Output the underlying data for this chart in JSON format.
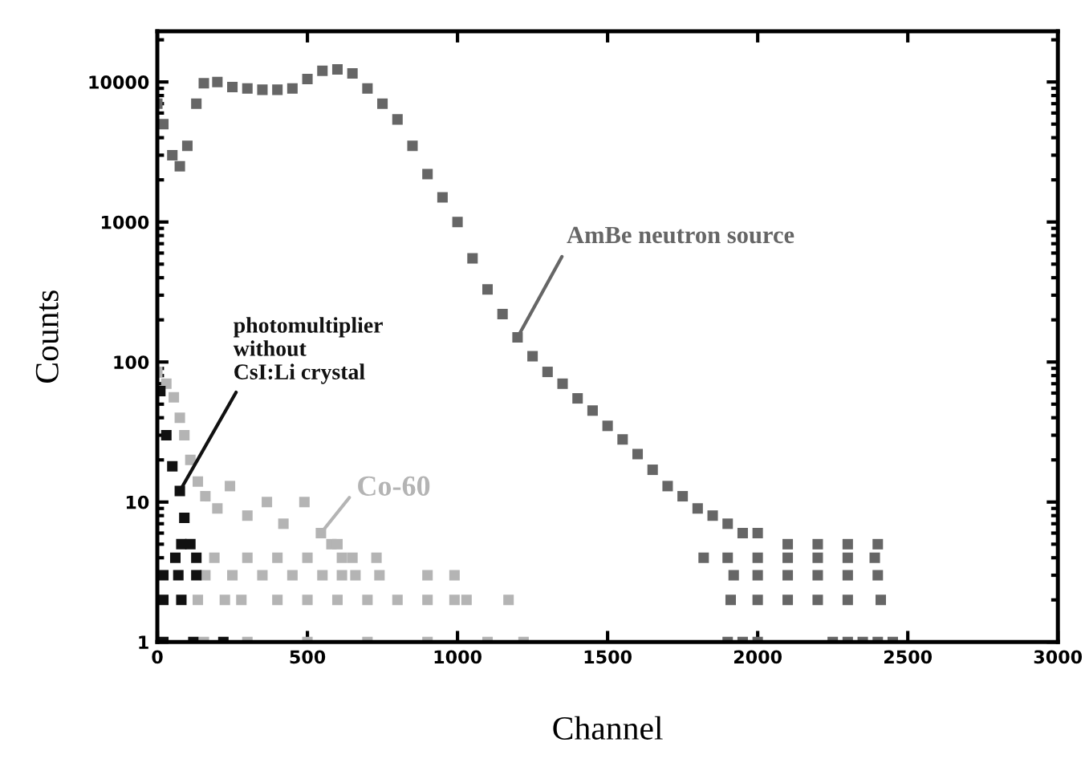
{
  "chart_data": {
    "type": "scatter",
    "xlabel": "Channel",
    "ylabel": "Counts",
    "log": "y",
    "xlim": [
      0,
      3000
    ],
    "ylim": [
      1,
      23000
    ],
    "xticks": [
      0,
      500,
      1000,
      1500,
      2000,
      2500,
      3000
    ],
    "yticks": [
      1,
      10,
      100,
      1000,
      10000
    ],
    "grid": false,
    "marker": "square",
    "series": [
      {
        "color": "#666666",
        "x": [
          0,
          20,
          50,
          75,
          100,
          130,
          155,
          200,
          250,
          300,
          350,
          400,
          450,
          500,
          550,
          600,
          650,
          700,
          750,
          800,
          850,
          900,
          950,
          1000,
          1050,
          1100,
          1150,
          1200,
          1250,
          1300,
          1350,
          1400,
          1450,
          1500,
          1550,
          1600,
          1650,
          1700,
          1750,
          1800,
          1850,
          1900,
          1950,
          2000,
          2100,
          2200,
          2300,
          2400,
          1820,
          1900,
          2000,
          2100,
          2200,
          2300,
          2390,
          1920,
          2000,
          2100,
          2200,
          2300,
          2400,
          1910,
          2000,
          2100,
          2200,
          2300,
          2410,
          1900,
          1950,
          2000,
          2250,
          2300,
          2350,
          2400,
          2450
        ],
        "values": [
          7000,
          5000,
          3000,
          2500,
          3500,
          7000,
          9800,
          10000,
          9200,
          9000,
          8800,
          8800,
          9000,
          10500,
          12000,
          12300,
          11500,
          9000,
          7000,
          5400,
          3500,
          2200,
          1500,
          1000,
          550,
          330,
          220,
          150,
          110,
          85,
          70,
          55,
          45,
          35,
          28,
          22,
          17,
          13,
          11,
          9,
          8,
          7,
          6,
          6,
          5,
          5,
          5,
          5,
          4,
          4,
          4,
          4,
          4,
          4,
          4,
          3,
          3,
          3,
          3,
          3,
          3,
          2,
          2,
          2,
          2,
          2,
          2,
          1,
          1,
          1,
          1,
          1,
          1,
          1,
          1
        ]
      },
      {
        "color": "#b4b4b4",
        "x": [
          0,
          30,
          55,
          75,
          90,
          110,
          135,
          160,
          200,
          242,
          300,
          365,
          420,
          490,
          545,
          580,
          600,
          190,
          300,
          400,
          500,
          615,
          650,
          730,
          160,
          250,
          350,
          450,
          550,
          615,
          660,
          740,
          900,
          990,
          135,
          225,
          280,
          400,
          500,
          600,
          700,
          800,
          900,
          990,
          1030,
          1170,
          155,
          300,
          500,
          700,
          900,
          1100,
          1220
        ],
        "values": [
          85,
          70,
          56,
          40,
          30,
          20,
          14,
          11,
          9,
          13,
          8,
          10,
          7,
          10,
          6,
          5,
          5,
          4,
          4,
          4,
          4,
          4,
          4,
          4,
          3,
          3,
          3,
          3,
          3,
          3,
          3,
          3,
          3,
          3,
          2,
          2,
          2,
          2,
          2,
          2,
          2,
          2,
          2,
          2,
          2,
          2,
          1,
          1,
          1,
          1,
          1,
          1,
          1
        ]
      },
      {
        "color": "#111111",
        "x": [
          10,
          30,
          50,
          75,
          90,
          80,
          110,
          60,
          130,
          20,
          70,
          130,
          20,
          80,
          20,
          120,
          220
        ],
        "values": [
          62,
          30,
          18,
          12,
          7.7,
          5,
          5,
          4,
          4,
          3,
          3,
          3,
          2,
          2,
          1,
          1,
          1
        ]
      }
    ],
    "annotations": [
      {
        "text": "AmBe neutron source",
        "x": 1200,
        "y": 150
      },
      {
        "text": "Co-60",
        "x": 545,
        "y": 6
      },
      {
        "text": "photomultiplier\nwithout\nCsI:Li crystal",
        "x": 75,
        "y": 12
      }
    ]
  }
}
